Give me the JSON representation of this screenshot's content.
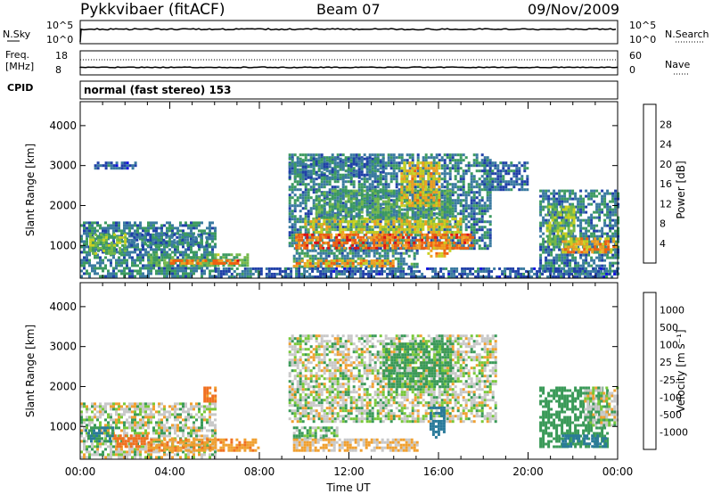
{
  "header": {
    "station": "Pykkvibaer (fitACF)",
    "beam": "Beam 07",
    "date": "09/Nov/2009"
  },
  "status_panels": {
    "nsky_label": "N.Sky",
    "nsearch_label": "N.Search",
    "freq_label_1": "Freq.",
    "freq_label_2": "[MHz]",
    "nave_label": "Nave",
    "cpid_label": "CPID",
    "cpid_text": "normal (fast stereo) 153",
    "nsky_ticks": [
      "10^5",
      "10^0"
    ],
    "nsearch_ticks": [
      "10^5",
      "10^0"
    ],
    "freq_ticks": [
      "18",
      "8"
    ],
    "nave_ticks": [
      "60",
      "0"
    ]
  },
  "axis": {
    "x_ticks": [
      "00:00",
      "04:00",
      "08:00",
      "12:00",
      "16:00",
      "20:00",
      "00:00"
    ],
    "x_label": "Time UT",
    "y_label": "Slant Range [km]",
    "y_ticks": [
      "4000",
      "3000",
      "2000",
      "1000"
    ]
  },
  "colorbars": {
    "power": {
      "label": "Power [dB]",
      "ticks": [
        "28",
        "24",
        "20",
        "16",
        "12",
        "8",
        "4"
      ],
      "colors": [
        "#1010e0",
        "#2040a8",
        "#3a7aa0",
        "#3c9a60",
        "#74b84a",
        "#c8d020",
        "#f0a020",
        "#f06010",
        "#e01010"
      ]
    },
    "velocity": {
      "label": "Velocity [m s⁻¹]",
      "ticks": [
        "1000",
        "500",
        "100",
        "25",
        "-25",
        "-100",
        "-500",
        "-1000"
      ],
      "colors": [
        "#1a3ea8",
        "#2a7a9a",
        "#3a9a58",
        "#78c83a",
        "#c8c8c8",
        "#c8c8c8",
        "#f0a030",
        "#f07020",
        "#e02020"
      ]
    }
  },
  "chart_data": [
    {
      "type": "heatmap",
      "name": "power",
      "xlabel": "Time UT",
      "ylabel": "Slant Range [km]",
      "xlim": [
        0,
        24
      ],
      "ylim": [
        180,
        4600
      ],
      "colorbar_label": "Power [dB]",
      "colorbar_range": [
        0,
        32
      ],
      "regions": [
        {
          "t0": 0.0,
          "t1": 6.0,
          "r0": 200,
          "r1": 1600,
          "level": 9
        },
        {
          "t0": 0.4,
          "t1": 2.0,
          "r0": 800,
          "r1": 1300,
          "level": 16
        },
        {
          "t0": 2.0,
          "t1": 5.8,
          "r0": 1000,
          "r1": 1300,
          "level": 8
        },
        {
          "t0": 3.0,
          "t1": 7.5,
          "r0": 500,
          "r1": 800,
          "level": 14
        },
        {
          "t0": 4.0,
          "t1": 7.0,
          "r0": 550,
          "r1": 650,
          "level": 27
        },
        {
          "t0": 0.5,
          "t1": 2.5,
          "r0": 2900,
          "r1": 3100,
          "level": 6
        },
        {
          "t0": 6.0,
          "t1": 9.3,
          "r0": 200,
          "r1": 450,
          "level": 7
        },
        {
          "t0": 9.3,
          "t1": 18.3,
          "r0": 900,
          "r1": 3300,
          "level": 9
        },
        {
          "t0": 9.6,
          "t1": 17.5,
          "r0": 900,
          "r1": 1300,
          "level": 27
        },
        {
          "t0": 10.0,
          "t1": 17.0,
          "r0": 1300,
          "r1": 1700,
          "level": 20
        },
        {
          "t0": 10.5,
          "t1": 16.5,
          "r0": 1700,
          "r1": 2400,
          "level": 12
        },
        {
          "t0": 14.3,
          "t1": 16.0,
          "r0": 2000,
          "r1": 3100,
          "level": 22
        },
        {
          "t0": 15.5,
          "t1": 16.5,
          "r0": 700,
          "r1": 1100,
          "level": 25
        },
        {
          "t0": 9.3,
          "t1": 13.5,
          "r0": 2700,
          "r1": 3200,
          "level": 8
        },
        {
          "t0": 9.5,
          "t1": 15.0,
          "r0": 450,
          "r1": 900,
          "level": 10
        },
        {
          "t0": 9.5,
          "t1": 14.0,
          "r0": 500,
          "r1": 650,
          "level": 24
        },
        {
          "t0": 18.0,
          "t1": 20.0,
          "r0": 2400,
          "r1": 3100,
          "level": 7
        },
        {
          "t0": 20.5,
          "t1": 24.0,
          "r0": 300,
          "r1": 2400,
          "level": 9
        },
        {
          "t0": 21.5,
          "t1": 24.0,
          "r0": 800,
          "r1": 1200,
          "level": 24
        },
        {
          "t0": 20.8,
          "t1": 22.0,
          "r0": 1000,
          "r1": 2000,
          "level": 16
        },
        {
          "t0": 9.0,
          "t1": 24.0,
          "r0": 200,
          "r1": 450,
          "level": 6
        }
      ]
    },
    {
      "type": "heatmap",
      "name": "velocity",
      "xlabel": "Time UT",
      "ylabel": "Slant Range [km]",
      "xlim": [
        0,
        24
      ],
      "ylim": [
        180,
        4600
      ],
      "colorbar_label": "Velocity [m s⁻¹]",
      "colorbar_range": [
        -1000,
        1000
      ],
      "regions": [
        {
          "t0": 0.0,
          "t1": 6.0,
          "r0": 250,
          "r1": 1600,
          "v": 0
        },
        {
          "t0": 0.2,
          "t1": 1.5,
          "r0": 600,
          "r1": 1000,
          "v": 300
        },
        {
          "t0": 1.5,
          "t1": 3.0,
          "r0": 500,
          "r1": 800,
          "v": -300
        },
        {
          "t0": 3.0,
          "t1": 8.0,
          "r0": 400,
          "r1": 700,
          "v": -150
        },
        {
          "t0": 5.5,
          "t1": 6.0,
          "r0": 1600,
          "r1": 2000,
          "v": -250
        },
        {
          "t0": 9.3,
          "t1": 18.5,
          "r0": 1100,
          "r1": 3300,
          "v": 0
        },
        {
          "t0": 13.5,
          "t1": 16.5,
          "r0": 2000,
          "r1": 3100,
          "v": 120
        },
        {
          "t0": 15.6,
          "t1": 16.3,
          "r0": 700,
          "r1": 1500,
          "v": 600
        },
        {
          "t0": 9.5,
          "t1": 11.5,
          "r0": 700,
          "r1": 1000,
          "v": 60
        },
        {
          "t0": 9.5,
          "t1": 15.0,
          "r0": 400,
          "r1": 700,
          "v": -80
        },
        {
          "t0": 20.5,
          "t1": 23.5,
          "r0": 500,
          "r1": 2000,
          "v": 150
        },
        {
          "t0": 21.5,
          "t1": 23.5,
          "r0": 500,
          "r1": 800,
          "v": 500
        },
        {
          "t0": 22.5,
          "t1": 24.0,
          "r0": 1000,
          "r1": 2000,
          "v": 0
        }
      ]
    }
  ]
}
